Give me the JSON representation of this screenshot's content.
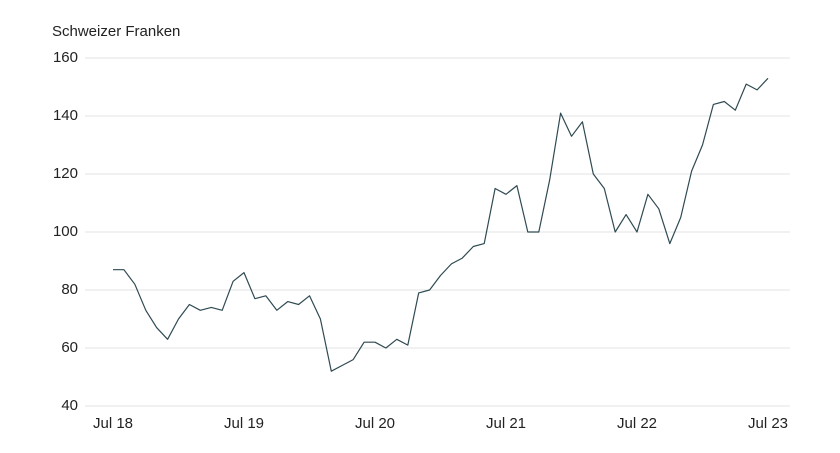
{
  "chart_data": {
    "type": "line",
    "y_label": "Schweizer Franken",
    "x": [
      "Jul 18",
      "Aug 18",
      "Sep 18",
      "Oct 18",
      "Nov 18",
      "Dec 18",
      "Jan 19",
      "Feb 19",
      "Mar 19",
      "Apr 19",
      "May 19",
      "Jun 19",
      "Jul 19",
      "Aug 19",
      "Sep 19",
      "Oct 19",
      "Nov 19",
      "Dec 19",
      "Jan 20",
      "Feb 20",
      "Mar 20",
      "Apr 20",
      "May 20",
      "Jun 20",
      "Jul 20",
      "Aug 20",
      "Sep 20",
      "Oct 20",
      "Nov 20",
      "Dec 20",
      "Jan 21",
      "Feb 21",
      "Mar 21",
      "Apr 21",
      "May 21",
      "Jun 21",
      "Jul 21",
      "Aug 21",
      "Sep 21",
      "Oct 21",
      "Nov 21",
      "Dec 21",
      "Jan 22",
      "Feb 22",
      "Mar 22",
      "Apr 22",
      "May 22",
      "Jun 22",
      "Jul 22",
      "Aug 22",
      "Sep 22",
      "Oct 22",
      "Nov 22",
      "Dec 22",
      "Jan 23",
      "Feb 23",
      "Mar 23",
      "Apr 23",
      "May 23",
      "Jun 23",
      "Jul 23"
    ],
    "series": [
      {
        "color": "#2f4a52",
        "values": [
          87,
          87,
          82,
          73,
          67,
          63,
          70,
          75,
          73,
          74,
          73,
          83,
          86,
          77,
          78,
          73,
          76,
          75,
          78,
          70,
          52,
          54,
          56,
          62,
          62,
          60,
          63,
          61,
          79,
          80,
          85,
          89,
          91,
          95,
          96,
          115,
          113,
          116,
          100,
          100,
          118,
          141,
          133,
          138,
          120,
          115,
          100,
          106,
          100,
          113,
          108,
          96,
          105,
          121,
          130,
          144,
          145,
          142,
          151,
          149,
          153
        ]
      }
    ],
    "xticks": [
      "Jul 18",
      "Jul 19",
      "Jul 20",
      "Jul 21",
      "Jul 22",
      "Jul 23"
    ],
    "ylim": [
      40,
      160
    ],
    "yticks": [
      40,
      60,
      80,
      100,
      120,
      140,
      160
    ],
    "grid": true
  }
}
